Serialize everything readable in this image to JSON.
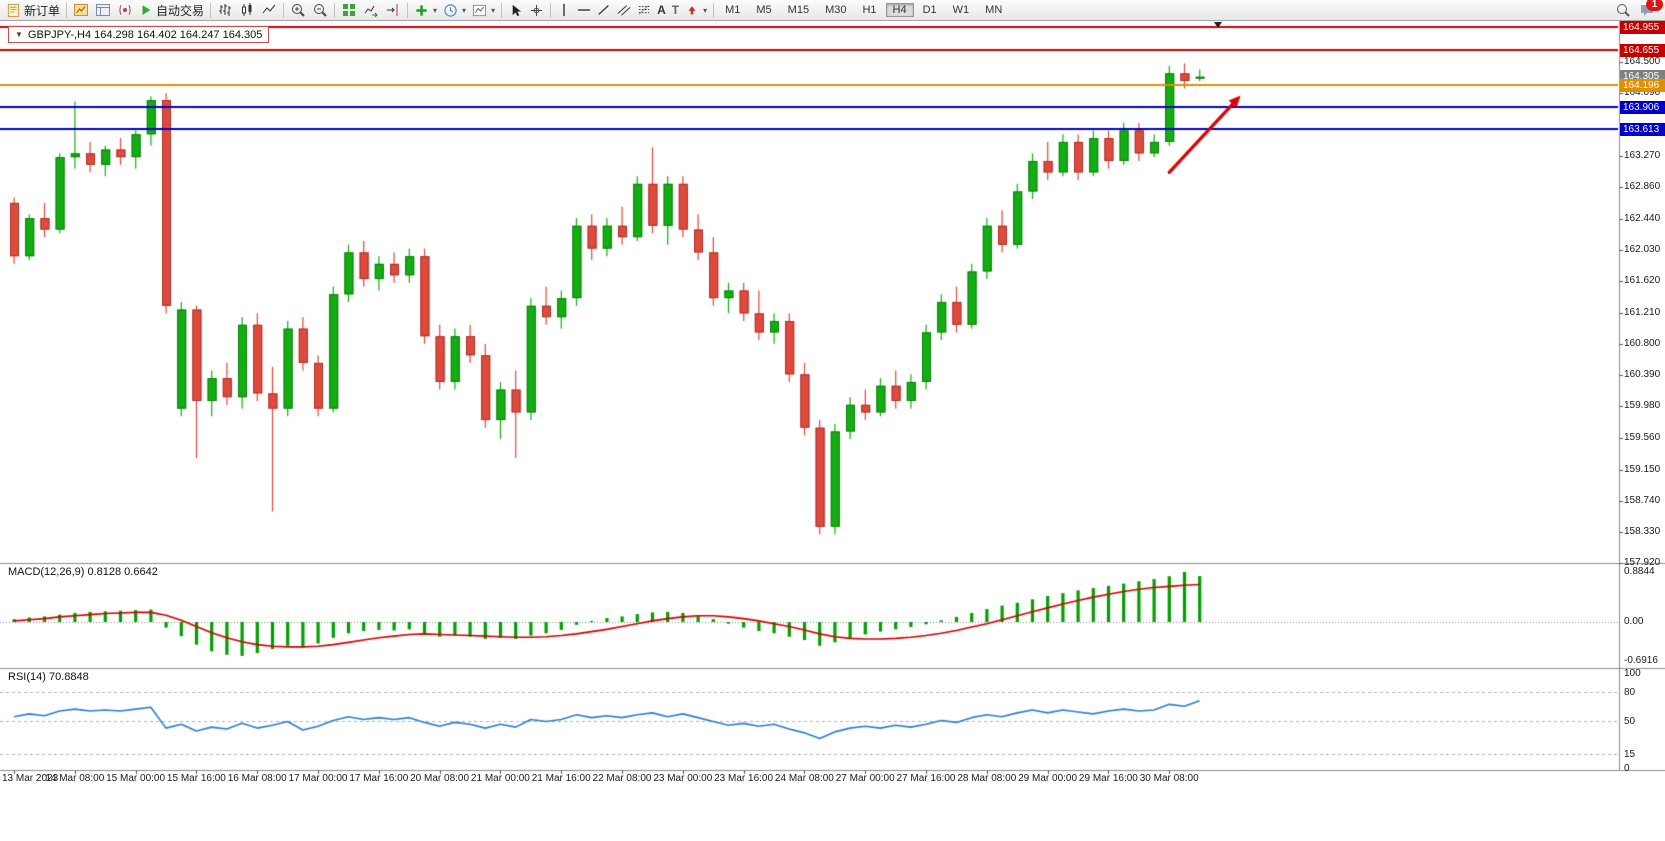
{
  "toolbar": {
    "new_order_label": "新订单",
    "auto_trading_label": "自动交易",
    "timeframes": [
      "M1",
      "M5",
      "M15",
      "M30",
      "H1",
      "H4",
      "D1",
      "W1",
      "MN"
    ],
    "active_timeframe": "H4",
    "notification_count": "1"
  },
  "chart": {
    "title": "GBPJPY-,H4 164.298 164.402 164.247 164.305",
    "symbol": "GBPJPY-",
    "period": "H4",
    "price_axis_labels": [
      "164.500",
      "164.090",
      "163.270",
      "162.860",
      "162.440",
      "162.030",
      "161.620",
      "161.210",
      "160.800",
      "160.390",
      "159.980",
      "159.560",
      "159.150",
      "158.740",
      "158.330",
      "157.920"
    ],
    "price_tags": [
      {
        "value": "164.955",
        "price": 164.955,
        "bg": "#c40000"
      },
      {
        "value": "164.655",
        "price": 164.655,
        "bg": "#c40000"
      },
      {
        "value": "164.305",
        "price": 164.305,
        "bg": "#7f7f7f"
      },
      {
        "value": "164.196",
        "price": 164.196,
        "bg": "#e08f00"
      },
      {
        "value": "163.906",
        "price": 163.906,
        "bg": "#0000c8"
      },
      {
        "value": "163.613",
        "price": 163.613,
        "bg": "#0000c8"
      }
    ]
  },
  "macd_panel": {
    "label": "MACD(12,26,9) 0.8128 0.6642",
    "axis_labels": [
      "0.8844",
      "0.00",
      "-0.6916"
    ]
  },
  "rsi_panel": {
    "label": "RSI(14) 70.8848",
    "axis_labels": [
      "100",
      "80",
      "50",
      "15",
      "0"
    ],
    "levels": [
      80,
      50,
      15
    ]
  },
  "chart_data": {
    "type": "candlestick",
    "symbol": "GBPJPY-",
    "timeframe": "H4",
    "ohlc_current": {
      "open": 164.298,
      "high": 164.402,
      "low": 164.247,
      "close": 164.305
    },
    "y_range": [
      157.92,
      165.05
    ],
    "up_color": "#12ae12",
    "down_color": "#e04a3c",
    "candles": [
      [
        162.65,
        162.72,
        161.85,
        161.95
      ],
      [
        161.95,
        162.5,
        161.9,
        162.45
      ],
      [
        162.45,
        162.65,
        162.2,
        162.3
      ],
      [
        162.3,
        163.3,
        162.25,
        163.25
      ],
      [
        163.25,
        163.98,
        163.1,
        163.3
      ],
      [
        163.3,
        163.45,
        163.05,
        163.15
      ],
      [
        163.15,
        163.4,
        163.0,
        163.35
      ],
      [
        163.35,
        163.5,
        163.15,
        163.25
      ],
      [
        163.25,
        163.6,
        163.1,
        163.55
      ],
      [
        163.55,
        164.05,
        163.4,
        164.0
      ],
      [
        164.0,
        164.09,
        161.2,
        161.3
      ],
      [
        159.95,
        161.35,
        159.85,
        161.25
      ],
      [
        161.25,
        161.3,
        159.3,
        160.05
      ],
      [
        160.05,
        160.45,
        159.85,
        160.35
      ],
      [
        160.35,
        160.55,
        160.0,
        160.1
      ],
      [
        160.1,
        161.15,
        159.95,
        161.05
      ],
      [
        161.05,
        161.2,
        160.05,
        160.15
      ],
      [
        160.15,
        160.5,
        158.6,
        159.95
      ],
      [
        159.95,
        161.1,
        159.85,
        161.0
      ],
      [
        161.0,
        161.15,
        160.45,
        160.55
      ],
      [
        160.55,
        160.65,
        159.85,
        159.95
      ],
      [
        159.95,
        161.55,
        159.9,
        161.45
      ],
      [
        161.45,
        162.1,
        161.35,
        162.0
      ],
      [
        162.0,
        162.15,
        161.55,
        161.65
      ],
      [
        161.65,
        161.95,
        161.5,
        161.85
      ],
      [
        161.85,
        162.0,
        161.6,
        161.7
      ],
      [
        161.7,
        162.05,
        161.6,
        161.95
      ],
      [
        161.95,
        162.05,
        160.8,
        160.9
      ],
      [
        160.9,
        161.05,
        160.2,
        160.3
      ],
      [
        160.3,
        161.0,
        160.2,
        160.9
      ],
      [
        160.9,
        161.05,
        160.55,
        160.65
      ],
      [
        160.65,
        160.8,
        159.7,
        159.8
      ],
      [
        159.8,
        160.3,
        159.55,
        160.2
      ],
      [
        160.2,
        160.45,
        159.3,
        159.9
      ],
      [
        159.9,
        161.4,
        159.8,
        161.3
      ],
      [
        161.3,
        161.55,
        161.05,
        161.15
      ],
      [
        161.15,
        161.5,
        161.0,
        161.4
      ],
      [
        161.4,
        162.45,
        161.3,
        162.35
      ],
      [
        162.35,
        162.5,
        161.9,
        162.05
      ],
      [
        162.05,
        162.45,
        161.95,
        162.35
      ],
      [
        162.35,
        162.6,
        162.1,
        162.2
      ],
      [
        162.2,
        163.0,
        162.15,
        162.9
      ],
      [
        162.9,
        163.38,
        162.25,
        162.35
      ],
      [
        162.35,
        163.0,
        162.1,
        162.9
      ],
      [
        162.9,
        163.0,
        162.2,
        162.3
      ],
      [
        162.3,
        162.5,
        161.9,
        162.0
      ],
      [
        162.0,
        162.2,
        161.3,
        161.4
      ],
      [
        161.4,
        161.6,
        161.2,
        161.5
      ],
      [
        161.5,
        161.6,
        161.1,
        161.2
      ],
      [
        161.2,
        161.5,
        160.85,
        160.95
      ],
      [
        160.95,
        161.2,
        160.8,
        161.1
      ],
      [
        161.1,
        161.2,
        160.3,
        160.4
      ],
      [
        160.4,
        160.55,
        159.6,
        159.7
      ],
      [
        159.7,
        159.8,
        158.3,
        158.4
      ],
      [
        158.4,
        159.75,
        158.3,
        159.65
      ],
      [
        159.65,
        160.1,
        159.55,
        160.0
      ],
      [
        160.0,
        160.2,
        159.8,
        159.9
      ],
      [
        159.9,
        160.35,
        159.85,
        160.25
      ],
      [
        160.25,
        160.45,
        159.95,
        160.05
      ],
      [
        160.05,
        160.4,
        159.95,
        160.3
      ],
      [
        160.3,
        161.05,
        160.2,
        160.95
      ],
      [
        160.95,
        161.45,
        160.85,
        161.35
      ],
      [
        161.35,
        161.55,
        160.95,
        161.05
      ],
      [
        161.05,
        161.85,
        161.0,
        161.75
      ],
      [
        161.75,
        162.45,
        161.65,
        162.35
      ],
      [
        162.35,
        162.55,
        162.0,
        162.1
      ],
      [
        162.1,
        162.9,
        162.05,
        162.8
      ],
      [
        162.8,
        163.3,
        162.7,
        163.2
      ],
      [
        163.2,
        163.45,
        162.95,
        163.05
      ],
      [
        163.05,
        163.55,
        163.0,
        163.45
      ],
      [
        163.45,
        163.55,
        162.95,
        163.05
      ],
      [
        163.05,
        163.6,
        163.0,
        163.5
      ],
      [
        163.5,
        163.6,
        163.1,
        163.2
      ],
      [
        163.2,
        163.7,
        163.15,
        163.6
      ],
      [
        163.6,
        163.7,
        163.2,
        163.3
      ],
      [
        163.3,
        163.55,
        163.25,
        163.45
      ],
      [
        163.45,
        164.45,
        163.4,
        164.35
      ],
      [
        164.35,
        164.48,
        164.15,
        164.25
      ],
      [
        164.298,
        164.402,
        164.247,
        164.305
      ]
    ],
    "hlines": [
      {
        "price": 164.955,
        "color": "#d40000",
        "width": 2
      },
      {
        "price": 164.655,
        "color": "#d40000",
        "width": 2
      },
      {
        "price": 164.196,
        "color": "#e08f00",
        "width": 2
      },
      {
        "price": 163.906,
        "color": "#0000d0",
        "width": 2
      },
      {
        "price": 163.613,
        "color": "#0000d0",
        "width": 2
      }
    ],
    "arrow": {
      "from_index": 76,
      "from_price": 163.05,
      "to_index": 80.7,
      "to_price": 164.06,
      "color": "#e00000"
    },
    "macd": {
      "hist_color": "#00a000",
      "signal_color": "#d40000",
      "range": [
        -0.6916,
        0.8844
      ],
      "histogram": [
        0.05,
        0.08,
        0.1,
        0.13,
        0.16,
        0.18,
        0.19,
        0.2,
        0.21,
        0.22,
        -0.1,
        -0.25,
        -0.4,
        -0.52,
        -0.58,
        -0.6,
        -0.55,
        -0.48,
        -0.42,
        -0.45,
        -0.38,
        -0.28,
        -0.2,
        -0.16,
        -0.14,
        -0.15,
        -0.13,
        -0.2,
        -0.26,
        -0.24,
        -0.26,
        -0.3,
        -0.28,
        -0.3,
        -0.24,
        -0.2,
        -0.14,
        -0.05,
        0.02,
        0.07,
        0.1,
        0.14,
        0.17,
        0.18,
        0.16,
        0.12,
        0.05,
        -0.03,
        -0.1,
        -0.16,
        -0.2,
        -0.26,
        -0.32,
        -0.42,
        -0.36,
        -0.28,
        -0.22,
        -0.17,
        -0.13,
        -0.09,
        -0.04,
        0.03,
        0.09,
        0.16,
        0.23,
        0.29,
        0.34,
        0.4,
        0.46,
        0.51,
        0.56,
        0.6,
        0.64,
        0.68,
        0.72,
        0.76,
        0.81,
        0.8844,
        0.8128
      ],
      "signal": [
        0.02,
        0.04,
        0.06,
        0.09,
        0.11,
        0.13,
        0.15,
        0.16,
        0.17,
        0.17,
        0.12,
        0.03,
        -0.08,
        -0.19,
        -0.28,
        -0.35,
        -0.4,
        -0.43,
        -0.44,
        -0.44,
        -0.43,
        -0.4,
        -0.36,
        -0.32,
        -0.28,
        -0.25,
        -0.22,
        -0.21,
        -0.22,
        -0.23,
        -0.24,
        -0.25,
        -0.26,
        -0.27,
        -0.27,
        -0.26,
        -0.24,
        -0.21,
        -0.17,
        -0.13,
        -0.08,
        -0.03,
        0.02,
        0.06,
        0.09,
        0.11,
        0.11,
        0.09,
        0.06,
        0.02,
        -0.03,
        -0.08,
        -0.14,
        -0.21,
        -0.26,
        -0.29,
        -0.3,
        -0.3,
        -0.29,
        -0.27,
        -0.24,
        -0.2,
        -0.15,
        -0.09,
        -0.03,
        0.04,
        0.11,
        0.18,
        0.25,
        0.32,
        0.38,
        0.44,
        0.49,
        0.54,
        0.58,
        0.61,
        0.63,
        0.65,
        0.6642
      ]
    },
    "rsi": {
      "color": "#2a7fd4",
      "range": [
        0,
        100
      ],
      "current": 70.8848,
      "values": [
        54,
        57,
        55,
        60,
        62,
        60,
        61,
        60,
        62,
        64,
        42,
        46,
        39,
        43,
        41,
        47,
        42,
        45,
        49,
        40,
        44,
        50,
        54,
        51,
        53,
        51,
        53,
        48,
        44,
        48,
        46,
        42,
        46,
        43,
        51,
        49,
        51,
        56,
        53,
        55,
        53,
        56,
        58,
        54,
        57,
        53,
        49,
        45,
        47,
        44,
        46,
        41,
        37,
        31,
        38,
        42,
        44,
        42,
        45,
        43,
        46,
        50,
        48,
        53,
        56,
        54,
        58,
        61,
        58,
        61,
        59,
        57,
        60,
        62,
        60,
        61,
        67,
        65,
        70.8848
      ]
    },
    "time_labels": [
      "13 Mar 2023",
      "14 Mar 08:00",
      "15 Mar 00:00",
      "15 Mar 16:00",
      "16 Mar 08:00",
      "17 Mar 00:00",
      "17 Mar 16:00",
      "20 Mar 08:00",
      "21 Mar 00:00",
      "21 Mar 16:00",
      "22 Mar 08:00",
      "23 Mar 00:00",
      "23 Mar 16:00",
      "24 Mar 08:00",
      "27 Mar 00:00",
      "27 Mar 16:00",
      "28 Mar 08:00",
      "29 Mar 00:00",
      "29 Mar 16:00",
      "30 Mar 08:00"
    ]
  }
}
